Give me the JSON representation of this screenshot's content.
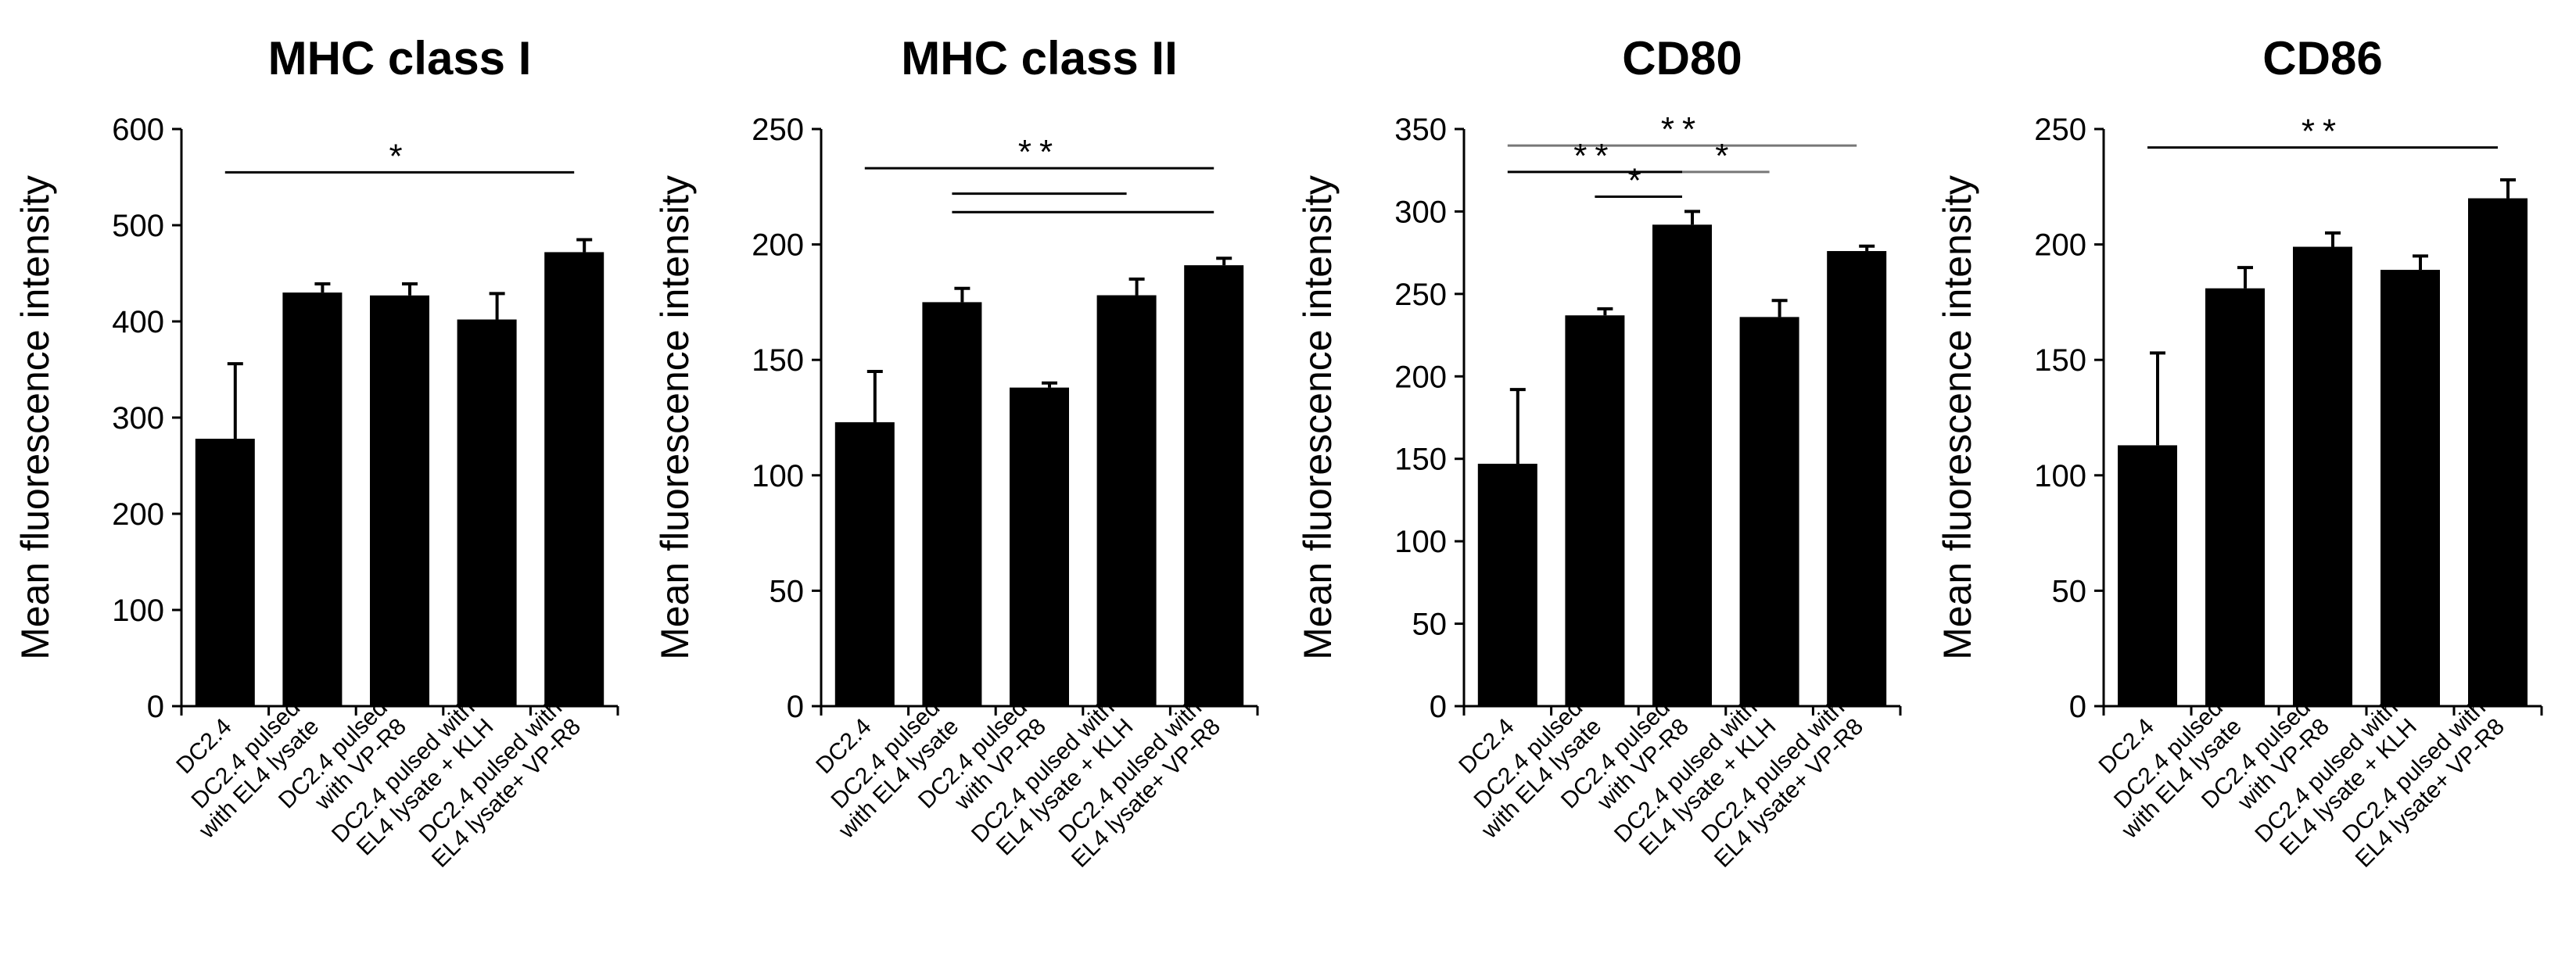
{
  "chart_data": [
    {
      "type": "bar",
      "title": "MHC class I",
      "ylabel": "Mean fluorescence intensity",
      "ylim": [
        0,
        600
      ],
      "yticks": [
        0,
        100,
        200,
        300,
        400,
        500,
        600
      ],
      "categories": [
        [
          "DC2.4"
        ],
        [
          "DC2.4 pulsed",
          "with EL4 lysate"
        ],
        [
          "DC2.4 pulsed",
          "with VP-R8"
        ],
        [
          "DC2.4 pulsed with",
          "EL4 lysate + KLH"
        ],
        [
          "DC2.4 pulsed with",
          "EL4 lysate+ VP-R8"
        ]
      ],
      "values": [
        278,
        430,
        427,
        402,
        472
      ],
      "errors": [
        78,
        9,
        12,
        27,
        13
      ],
      "significance": [
        {
          "from": 0,
          "to": 4,
          "y": 555,
          "label": "*",
          "color": "#000000"
        }
      ]
    },
    {
      "type": "bar",
      "title": "MHC class II",
      "ylabel": "Mean fluorescence intensity",
      "ylim": [
        0,
        250
      ],
      "yticks": [
        0,
        50,
        100,
        150,
        200,
        250
      ],
      "categories": [
        [
          "DC2.4"
        ],
        [
          "DC2.4 pulsed",
          "with EL4 lysate"
        ],
        [
          "DC2.4 pulsed",
          "with VP-R8"
        ],
        [
          "DC2.4 pulsed with",
          "EL4 lysate + KLH"
        ],
        [
          "DC2.4 pulsed with",
          "EL4 lysate+ VP-R8"
        ]
      ],
      "values": [
        123,
        175,
        138,
        178,
        191
      ],
      "errors": [
        22,
        6,
        2,
        7,
        3
      ],
      "significance": [
        {
          "from": 0,
          "to": 4,
          "y": 233,
          "label": "**",
          "color": "#000000"
        },
        {
          "from": 1,
          "to": 2,
          "y": 222,
          "label": "",
          "color": "#000000"
        },
        {
          "from": 2,
          "to": 3,
          "y": 222,
          "label": "",
          "color": "#000000"
        },
        {
          "from": 1,
          "to": 4,
          "y": 214,
          "label": "",
          "color": "#000000"
        }
      ]
    },
    {
      "type": "bar",
      "title": "CD80",
      "ylabel": "Mean fluorescence intensity",
      "ylim": [
        0,
        350
      ],
      "yticks": [
        0,
        50,
        100,
        150,
        200,
        250,
        300,
        350
      ],
      "categories": [
        [
          "DC2.4"
        ],
        [
          "DC2.4 pulsed",
          "with EL4 lysate"
        ],
        [
          "DC2.4 pulsed",
          "with VP-R8"
        ],
        [
          "DC2.4 pulsed with",
          "EL4 lysate + KLH"
        ],
        [
          "DC2.4 pulsed with",
          "EL4 lysate+ VP-R8"
        ]
      ],
      "values": [
        147,
        237,
        292,
        236,
        276
      ],
      "errors": [
        45,
        4,
        8,
        10,
        3
      ],
      "significance": [
        {
          "from": 0,
          "to": 4,
          "y": 340,
          "label": "**",
          "color": "#777777"
        },
        {
          "from": 0,
          "to": 2,
          "y": 324,
          "label": "**",
          "color": "#000000"
        },
        {
          "from": 2,
          "to": 3,
          "y": 324,
          "label": "*",
          "color": "#777777"
        },
        {
          "from": 1,
          "to": 2,
          "y": 309,
          "label": "*",
          "color": "#000000"
        }
      ]
    },
    {
      "type": "bar",
      "title": "CD86",
      "ylabel": "Mean fluorescence intensity",
      "ylim": [
        0,
        250
      ],
      "yticks": [
        0,
        50,
        100,
        150,
        200,
        250
      ],
      "categories": [
        [
          "DC2.4"
        ],
        [
          "DC2.4 pulsed",
          "with EL4 lysate"
        ],
        [
          "DC2.4 pulsed",
          "with VP-R8"
        ],
        [
          "DC2.4 pulsed with",
          "EL4 lysate + KLH"
        ],
        [
          "DC2.4 pulsed with",
          "EL4 lysate+ VP-R8"
        ]
      ],
      "values": [
        113,
        181,
        199,
        189,
        220
      ],
      "errors": [
        40,
        9,
        6,
        6,
        8
      ],
      "significance": [
        {
          "from": 0,
          "to": 4,
          "y": 242,
          "label": "**",
          "color": "#000000"
        }
      ]
    }
  ]
}
